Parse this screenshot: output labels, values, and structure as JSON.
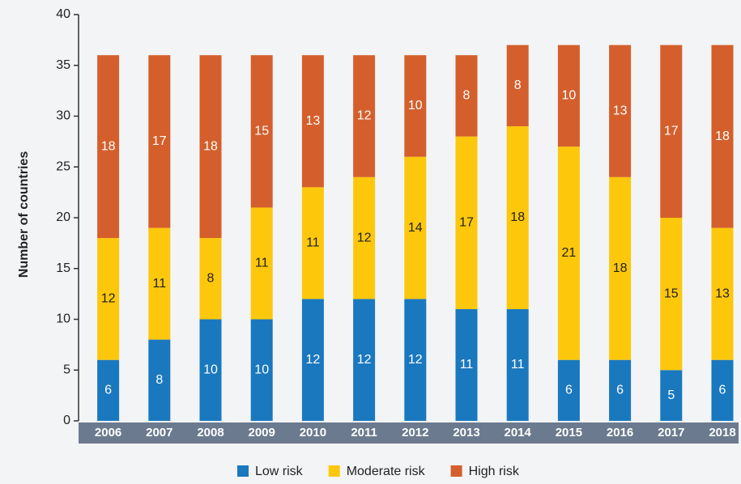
{
  "chart_data": {
    "type": "stacked_bar",
    "y_label": "Number of countries",
    "categories": [
      "2006",
      "2007",
      "2008",
      "2009",
      "2010",
      "2011",
      "2012",
      "2013",
      "2014",
      "2015",
      "2016",
      "2017",
      "2018"
    ],
    "series": [
      {
        "name": "Low risk",
        "color": "#1a78be",
        "values": [
          6,
          8,
          10,
          10,
          12,
          12,
          12,
          11,
          11,
          6,
          6,
          5,
          6
        ]
      },
      {
        "name": "Moderate risk",
        "color": "#fdc70c",
        "values": [
          12,
          11,
          8,
          11,
          11,
          12,
          14,
          17,
          18,
          21,
          18,
          15,
          13
        ]
      },
      {
        "name": "High risk",
        "color": "#d45f2c",
        "values": [
          18,
          17,
          18,
          15,
          13,
          12,
          10,
          8,
          8,
          10,
          13,
          17,
          18
        ]
      }
    ],
    "ylim": [
      0,
      40
    ],
    "yticks": [
      0,
      5,
      10,
      15,
      20,
      25,
      30,
      35,
      40
    ]
  }
}
